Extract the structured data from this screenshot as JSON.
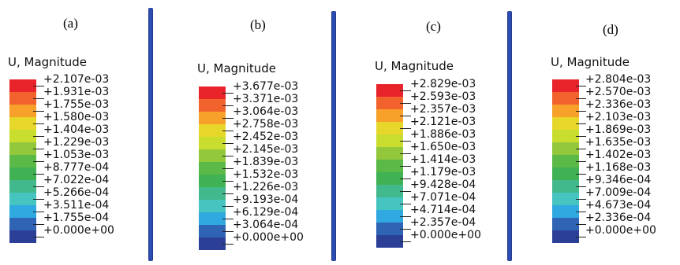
{
  "panels": [
    {
      "letter": "(a)",
      "title": "U, Magnitude",
      "labels": [
        "+2.107e-03",
        "+1.931e-03",
        "+1.755e-03",
        "+1.580e-03",
        "+1.404e-03",
        "+1.229e-03",
        "+1.053e-03",
        "+8.777e-04",
        "+7.022e-04",
        "+5.266e-04",
        "+3.511e-04",
        "+1.755e-04",
        "+0.000e+00"
      ]
    },
    {
      "letter": "(b)",
      "title": "U, Magnitude",
      "labels": [
        "+3.677e-03",
        "+3.371e-03",
        "+3.064e-03",
        "+2.758e-03",
        "+2.452e-03",
        "+2.145e-03",
        "+1.839e-03",
        "+1.532e-03",
        "+1.226e-03",
        "+9.193e-04",
        "+6.129e-04",
        "+3.064e-04",
        "+0.000e+00"
      ]
    },
    {
      "letter": "(c)",
      "title": "U, Magnitude",
      "labels": [
        "+2.829e-03",
        "+2.593e-03",
        "+2.357e-03",
        "+2.121e-03",
        "+1.886e-03",
        "+1.650e-03",
        "+1.414e-03",
        "+1.179e-03",
        "+9.428e-04",
        "+7.071e-04",
        "+4.714e-04",
        "+2.357e-04",
        "+0.000e+00"
      ]
    },
    {
      "letter": "(d)",
      "title": "U, Magnitude",
      "labels": [
        "+2.804e-03",
        "+2.570e-03",
        "+2.336e-03",
        "+2.103e-03",
        "+1.869e-03",
        "+1.635e-03",
        "+1.402e-03",
        "+1.168e-03",
        "+9.346e-04",
        "+7.009e-04",
        "+4.673e-04",
        "+2.336e-04",
        "+0.000e+00"
      ]
    }
  ],
  "colormap": [
    "#e8232a",
    "#f2622d",
    "#f7a02a",
    "#e7d72b",
    "#c9dd2e",
    "#93c83d",
    "#5bb947",
    "#41b253",
    "#42b98c",
    "#45c4c0",
    "#30a8e0",
    "#2f63b4",
    "#2b3f97"
  ]
}
